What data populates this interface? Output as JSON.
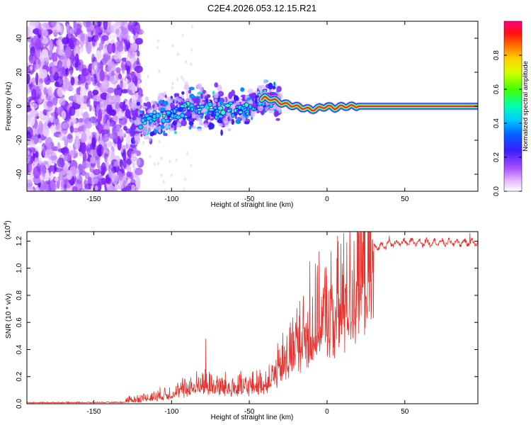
{
  "title": "C2E4.2026.053.12.15.R21",
  "chart_data": [
    {
      "type": "heatmap",
      "name": "spectrogram",
      "xlabel": "Height of straight line (km)",
      "ylabel": "Frequency (Hz)",
      "xlim": [
        -193,
        97
      ],
      "ylim": [
        -50,
        50
      ],
      "xticks": [
        -150,
        -100,
        -50,
        0,
        50
      ],
      "xtick_labels": [
        "-150",
        "-100",
        "-50",
        "0",
        "50"
      ],
      "yticks": [
        -40,
        -20,
        0,
        20,
        40
      ],
      "ytick_labels": [
        "-40",
        "-20",
        "0",
        "20",
        "40"
      ],
      "ridge": {
        "description": "dominant frequency track",
        "x": [
          -125,
          -110,
          -100,
          -90,
          -80,
          -70,
          -60,
          -50,
          -40,
          -35,
          -30,
          -25,
          -20,
          -15,
          -10,
          -5,
          0,
          5,
          10,
          15,
          20,
          97
        ],
        "y": [
          -9,
          -7,
          -5,
          -2,
          0,
          -3,
          -2,
          0,
          5,
          4,
          2,
          1,
          0,
          -1,
          -2,
          -1,
          0,
          -1,
          0,
          0,
          0,
          0
        ]
      },
      "colorbar": {
        "label": "Normalized spectral amplitude",
        "range": [
          0.0,
          1.0
        ],
        "ticks": [
          0.0,
          0.2,
          0.4,
          0.6,
          0.8
        ],
        "tick_labels": [
          "0.0",
          "0.2",
          "0.4",
          "0.6",
          "0.8"
        ]
      }
    },
    {
      "type": "line",
      "name": "snr",
      "xlabel": "Height of straight line (km)",
      "ylabel": "SNR (10 * v/v)",
      "scale_note": "(x10",
      "scale_exp": "4",
      "scale_close": ")",
      "xlim": [
        -193,
        97
      ],
      "ylim": [
        0,
        1.27
      ],
      "xticks": [
        -150,
        -100,
        -50,
        0,
        50
      ],
      "xtick_labels": [
        "-150",
        "-100",
        "-50",
        "0",
        "50"
      ],
      "yticks": [
        0,
        0.2,
        0.4,
        0.6,
        0.8,
        1.0,
        1.2
      ],
      "ytick_labels": [
        "0.0",
        "0.2",
        "0.4",
        "0.6",
        "0.8",
        "1.0",
        "1.2"
      ],
      "series": [
        {
          "name": "SNR",
          "color": "#e8312c",
          "envelope": {
            "x": [
              -193,
              -130,
              -120,
              -110,
              -100,
              -90,
              -80,
              -70,
              -60,
              -50,
              -40,
              -35,
              -30,
              -25,
              -20,
              -15,
              -10,
              -5,
              0,
              5,
              10,
              15,
              20,
              30,
              40,
              50,
              60,
              70,
              80,
              90,
              97
            ],
            "y": [
              0.01,
              0.015,
              0.03,
              0.05,
              0.08,
              0.12,
              0.16,
              0.14,
              0.13,
              0.14,
              0.16,
              0.22,
              0.3,
              0.42,
              0.5,
              0.56,
              0.62,
              0.7,
              0.74,
              0.78,
              0.86,
              0.97,
              1.08,
              1.15,
              1.18,
              1.19,
              1.19,
              1.19,
              1.19,
              1.19,
              1.19
            ]
          },
          "peaks": [
            {
              "x": -78,
              "y": 0.48
            },
            {
              "x": -11,
              "y": 1.05
            },
            {
              "x": 9,
              "y": 1.18
            },
            {
              "x": 40,
              "y": 1.24
            },
            {
              "x": 92,
              "y": 1.26
            }
          ]
        }
      ]
    }
  ],
  "colors": {
    "line": "#e8312c",
    "frame": "#000000",
    "noise": "#7f1fff",
    "ridge_core": "#e8213d"
  }
}
